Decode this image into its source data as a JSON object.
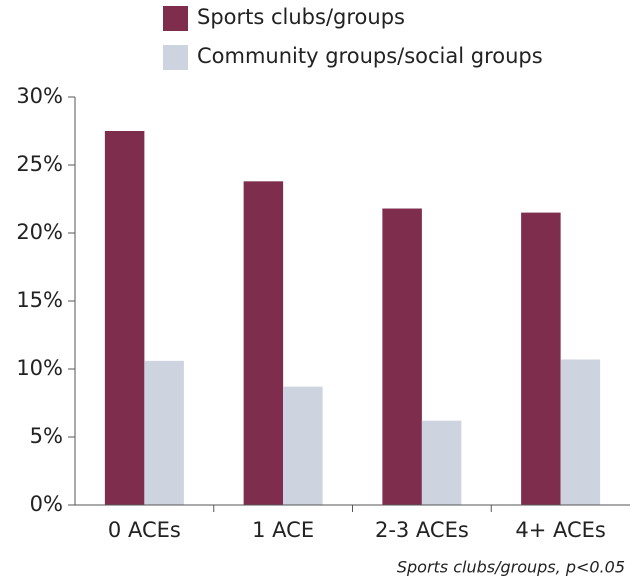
{
  "chart_data": {
    "type": "bar",
    "categories": [
      "0 ACEs",
      "1 ACE",
      "2-3 ACEs",
      "4+ ACEs"
    ],
    "series": [
      {
        "name": "Sports clubs/groups",
        "color": "#7e2d4c",
        "values": [
          27.5,
          23.8,
          21.8,
          21.5
        ]
      },
      {
        "name": "Community groups/social groups",
        "color": "#cdd3df",
        "values": [
          10.6,
          8.7,
          6.2,
          10.7
        ]
      }
    ],
    "ylim": [
      0,
      30
    ],
    "yticks": [
      {
        "value": 0,
        "label": "0%"
      },
      {
        "value": 5,
        "label": "5%"
      },
      {
        "value": 10,
        "label": "10%"
      },
      {
        "value": 15,
        "label": "15%"
      },
      {
        "value": 20,
        "label": "20%"
      },
      {
        "value": 25,
        "label": "25%"
      },
      {
        "value": 30,
        "label": "30%"
      }
    ],
    "annotation": "Sports clubs/groups, p<0.05",
    "legend": "top"
  }
}
